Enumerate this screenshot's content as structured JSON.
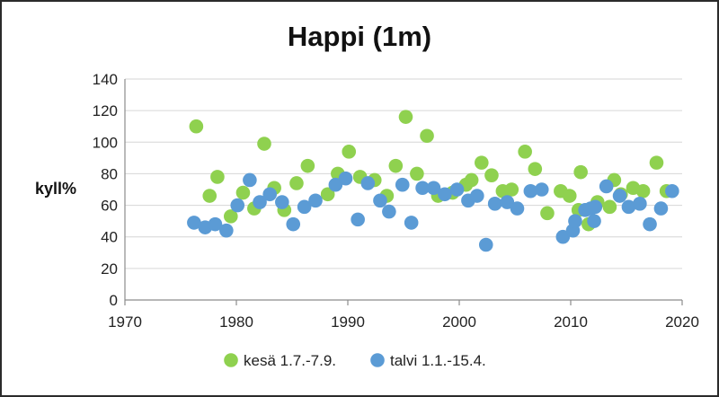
{
  "chart_data": {
    "type": "scatter",
    "title": "Happi (1m)",
    "xlabel": "",
    "ylabel": "kyll%",
    "xlim": [
      1970,
      2020
    ],
    "ylim": [
      0,
      140
    ],
    "x_ticks": [
      1970,
      1980,
      1990,
      2000,
      2010,
      2020
    ],
    "y_ticks": [
      0,
      20,
      40,
      60,
      80,
      100,
      120,
      140
    ],
    "grid": "horizontal",
    "legend_position": "bottom",
    "series": [
      {
        "name": "kesä 1.7.-7.9.",
        "color": "#8fd14f",
        "points": [
          [
            1976.4,
            110
          ],
          [
            1977.6,
            66
          ],
          [
            1978.3,
            78
          ],
          [
            1979.5,
            53
          ],
          [
            1980.6,
            68
          ],
          [
            1981.6,
            58
          ],
          [
            1982.5,
            99
          ],
          [
            1983.4,
            71
          ],
          [
            1984.3,
            57
          ],
          [
            1985.4,
            74
          ],
          [
            1986.4,
            85
          ],
          [
            1988.2,
            67
          ],
          [
            1989.1,
            80
          ],
          [
            1990.1,
            94
          ],
          [
            1991.1,
            78
          ],
          [
            1992.4,
            76
          ],
          [
            1993.5,
            66
          ],
          [
            1994.3,
            85
          ],
          [
            1995.2,
            116
          ],
          [
            1996.2,
            80
          ],
          [
            1997.1,
            104
          ],
          [
            1998.1,
            66
          ],
          [
            1999.4,
            68
          ],
          [
            2000.6,
            73
          ],
          [
            2001.1,
            76
          ],
          [
            2002.0,
            87
          ],
          [
            2002.9,
            79
          ],
          [
            2003.9,
            69
          ],
          [
            2004.7,
            70
          ],
          [
            2005.9,
            94
          ],
          [
            2006.8,
            83
          ],
          [
            2007.9,
            55
          ],
          [
            2009.1,
            69
          ],
          [
            2009.9,
            66
          ],
          [
            2010.7,
            57
          ],
          [
            2010.9,
            81
          ],
          [
            2011.6,
            48
          ],
          [
            2012.4,
            62
          ],
          [
            2013.5,
            59
          ],
          [
            2013.9,
            76
          ],
          [
            2014.5,
            67
          ],
          [
            2015.6,
            71
          ],
          [
            2016.5,
            69
          ],
          [
            2017.7,
            87
          ],
          [
            2018.6,
            69
          ]
        ]
      },
      {
        "name": "talvi 1.1.-15.4.",
        "color": "#5b9bd5",
        "points": [
          [
            1976.2,
            49
          ],
          [
            1977.2,
            46
          ],
          [
            1978.1,
            48
          ],
          [
            1979.1,
            44
          ],
          [
            1980.1,
            60
          ],
          [
            1981.2,
            76
          ],
          [
            1982.1,
            62
          ],
          [
            1983.0,
            67
          ],
          [
            1984.1,
            62
          ],
          [
            1985.1,
            48
          ],
          [
            1986.1,
            59
          ],
          [
            1987.1,
            63
          ],
          [
            1988.9,
            73
          ],
          [
            1989.8,
            77
          ],
          [
            1990.9,
            51
          ],
          [
            1991.8,
            74
          ],
          [
            1992.9,
            63
          ],
          [
            1993.7,
            56
          ],
          [
            1994.9,
            73
          ],
          [
            1995.7,
            49
          ],
          [
            1996.7,
            71
          ],
          [
            1997.7,
            71
          ],
          [
            1998.7,
            67
          ],
          [
            1999.8,
            70
          ],
          [
            2000.8,
            63
          ],
          [
            2001.6,
            66
          ],
          [
            2002.4,
            35
          ],
          [
            2003.2,
            61
          ],
          [
            2004.3,
            62
          ],
          [
            2005.2,
            58
          ],
          [
            2006.4,
            69
          ],
          [
            2007.4,
            70
          ],
          [
            2009.3,
            40
          ],
          [
            2010.2,
            44
          ],
          [
            2010.4,
            50
          ],
          [
            2011.3,
            57
          ],
          [
            2011.8,
            58
          ],
          [
            2012.1,
            50
          ],
          [
            2012.2,
            59
          ],
          [
            2013.2,
            72
          ],
          [
            2014.4,
            66
          ],
          [
            2015.2,
            59
          ],
          [
            2016.2,
            61
          ],
          [
            2017.1,
            48
          ],
          [
            2018.1,
            58
          ],
          [
            2019.1,
            69
          ]
        ]
      }
    ]
  }
}
